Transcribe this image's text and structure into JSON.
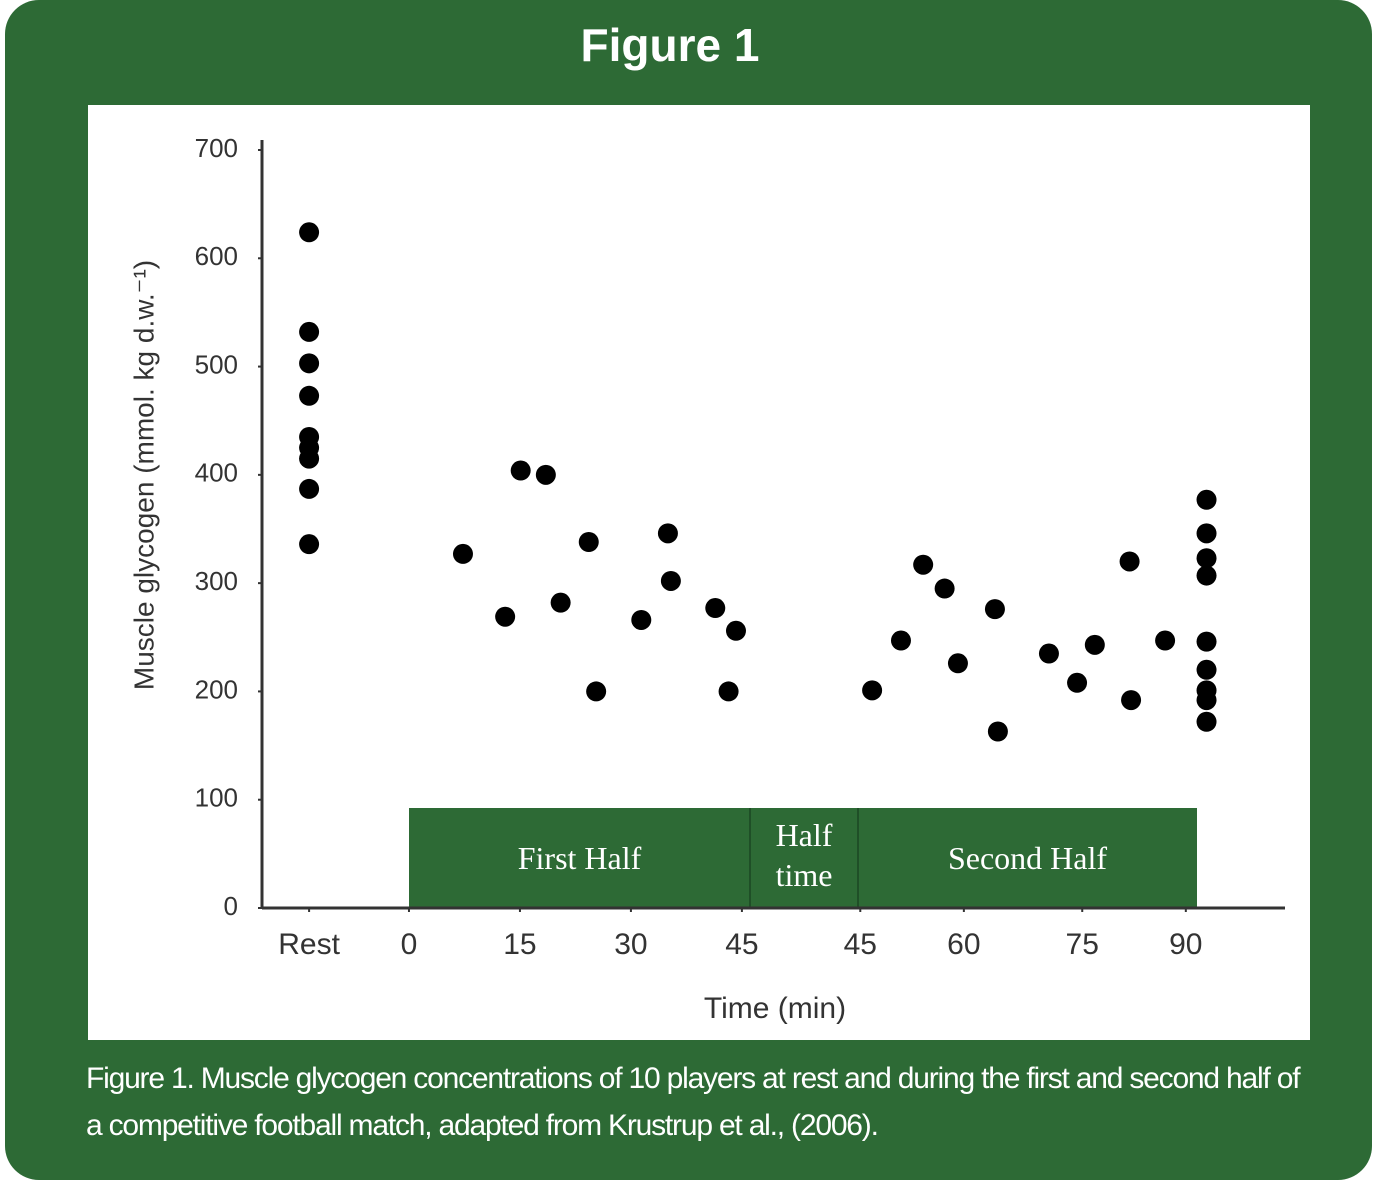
{
  "chart_data": {
    "type": "scatter",
    "title": "Figure 1",
    "ylabel": "Muscle glycogen (mmol. kg d.w.⁻¹)",
    "xlabel": "Time (min)",
    "caption": "Figure 1. Muscle glycogen concentrations of 10 players at rest and during the first and second half of a competitive football match, adapted from Krustrup et al., (2006).",
    "annotations": [
      "First Half",
      "Half time",
      "Second Half"
    ],
    "color": "#000000",
    "x": [
      -13.5,
      -13.5,
      -13.5,
      -13.5,
      -13.5,
      -13.5,
      -13.5,
      -13.5,
      -13.5,
      7.3,
      13,
      15.1,
      18.5,
      20.5,
      24.3,
      25.3,
      31.4,
      35,
      35.4,
      41.4,
      44.2,
      43.2,
      62.6,
      66.5,
      69.5,
      72.4,
      74.2,
      79.2,
      79.6,
      86.5,
      90.3,
      92.7,
      97.4,
      97.6,
      102.2,
      107.8,
      107.8,
      107.8,
      107.8,
      107.8,
      107.8,
      107.8,
      107.8,
      107.8
    ],
    "y": [
      624,
      532,
      503,
      473,
      435,
      425,
      415,
      387,
      336,
      327,
      269,
      404,
      400,
      282,
      338,
      200,
      266,
      346,
      302,
      277,
      256,
      200,
      201,
      247,
      317,
      295,
      226,
      276,
      163,
      235,
      208,
      243,
      320,
      192,
      247,
      377,
      346,
      323,
      307,
      246,
      220,
      201,
      192,
      172
    ],
    "xlim": [
      -20,
      118
    ],
    "ylim": [
      0,
      700
    ],
    "xticks": [
      {
        "value": -13.5,
        "label": "Rest"
      },
      0,
      15,
      30,
      45,
      {
        "value": 61,
        "label": "45"
      },
      {
        "value": 75,
        "label": "60"
      },
      {
        "value": 91,
        "label": "75"
      },
      {
        "value": 105,
        "label": "90"
      }
    ],
    "yticks": [
      0,
      100,
      200,
      300,
      400,
      500,
      600,
      700
    ]
  }
}
